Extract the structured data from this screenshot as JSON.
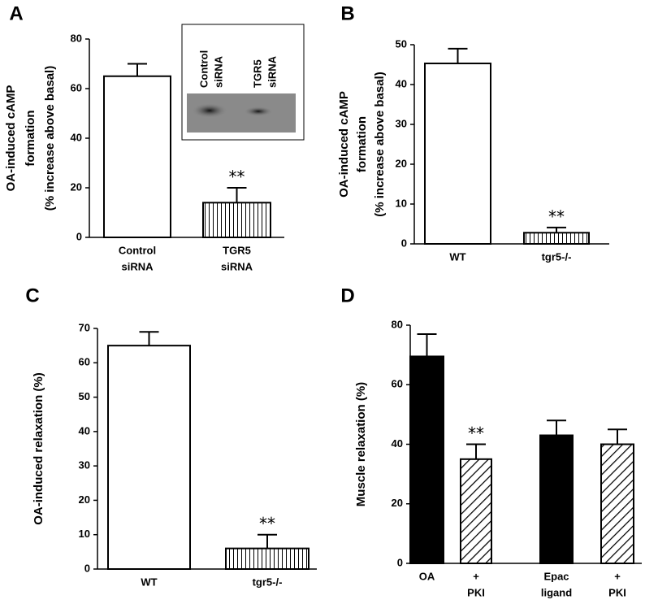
{
  "chart_data": [
    {
      "type": "bar",
      "label": "A",
      "ylabel": [
        "OA-induced cAMP",
        "formation",
        "(% increase above basal)"
      ],
      "categories": [
        [
          "Control",
          "siRNA"
        ],
        [
          "TGR5",
          "siRNA"
        ]
      ],
      "values": [
        65,
        14
      ],
      "errors": [
        5,
        6
      ],
      "fills": [
        "open",
        "vstripe"
      ],
      "value_annotations": [
        null,
        "**"
      ],
      "ylim": [
        0,
        80
      ],
      "yticks": [
        0,
        20,
        40,
        60,
        80
      ],
      "inset_labels": [
        [
          "Control",
          "siRNA"
        ],
        [
          "TGR5",
          "siRNA"
        ]
      ]
    },
    {
      "type": "bar",
      "label": "B",
      "ylabel": [
        "OA-induced cAMP",
        "formation",
        "(% increase above basal)"
      ],
      "categories": [
        [
          "WT"
        ],
        [
          "tgr5-/-"
        ]
      ],
      "values": [
        45.3,
        2.8
      ],
      "errors": [
        3.7,
        1.3
      ],
      "fills": [
        "open",
        "vstripe"
      ],
      "value_annotations": [
        null,
        "**"
      ],
      "ylim": [
        0,
        50
      ],
      "yticks": [
        0,
        10,
        20,
        30,
        40,
        50
      ]
    },
    {
      "type": "bar",
      "label": "C",
      "ylabel": [
        "OA-induced relaxation (%)"
      ],
      "categories": [
        [
          "WT"
        ],
        [
          "tgr5-/-"
        ]
      ],
      "values": [
        65,
        6
      ],
      "errors": [
        4,
        4
      ],
      "fills": [
        "open",
        "vstripe"
      ],
      "value_annotations": [
        null,
        "**"
      ],
      "ylim": [
        0,
        70
      ],
      "yticks": [
        0,
        10,
        20,
        30,
        40,
        50,
        60,
        70
      ]
    },
    {
      "type": "bar",
      "label": "D",
      "ylabel": [
        "Muscle relaxation (%)"
      ],
      "categories": [
        [
          "OA"
        ],
        [
          "+",
          "PKI"
        ],
        [
          "Epac",
          "ligand"
        ],
        [
          "+",
          "PKI"
        ]
      ],
      "values": [
        69.5,
        35,
        43,
        40
      ],
      "errors": [
        7.5,
        5,
        5,
        5
      ],
      "fills": [
        "solid",
        "hatch",
        "solid",
        "hatch"
      ],
      "value_annotations": [
        null,
        "**",
        null,
        null
      ],
      "ylim": [
        0,
        80
      ],
      "yticks": [
        0,
        20,
        40,
        60,
        80
      ]
    }
  ]
}
